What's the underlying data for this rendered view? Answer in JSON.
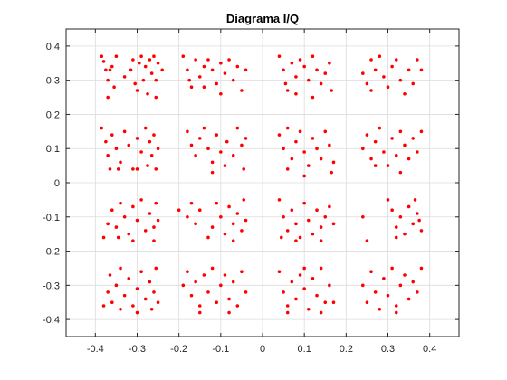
{
  "chart_data": {
    "type": "scatter",
    "title": "Diagrama I/Q",
    "xlabel": "",
    "ylabel": "",
    "xlim": [
      -0.47,
      0.47
    ],
    "ylim": [
      -0.45,
      0.45
    ],
    "xticks": [
      -0.4,
      -0.3,
      -0.2,
      -0.1,
      0,
      0.1,
      0.2,
      0.3,
      0.4
    ],
    "yticks": [
      -0.4,
      -0.3,
      -0.2,
      -0.1,
      0,
      0.1,
      0.2,
      0.3,
      0.4
    ],
    "xtick_labels": [
      "-0.4",
      "-0.3",
      "-0.2",
      "-0.1",
      "0",
      "0.1",
      "0.2",
      "0.3",
      "0.4"
    ],
    "ytick_labels": [
      "-0.4",
      "-0.3",
      "-0.2",
      "-0.1",
      "0",
      "0.1",
      "0.2",
      "0.3",
      "0.4"
    ],
    "grid": true,
    "marker_color": "#ff0000",
    "series": [
      {
        "points": [
          [
            -0.385,
            0.37
          ],
          [
            -0.38,
            0.355
          ],
          [
            -0.375,
            0.33
          ],
          [
            -0.37,
            0.3
          ],
          [
            -0.365,
            0.33
          ],
          [
            -0.36,
            0.34
          ],
          [
            -0.355,
            0.28
          ],
          [
            -0.35,
            0.37
          ],
          [
            -0.33,
            0.31
          ],
          [
            -0.315,
            0.33
          ],
          [
            -0.31,
            0.36
          ],
          [
            -0.305,
            0.29
          ],
          [
            -0.3,
            0.27
          ],
          [
            -0.295,
            0.35
          ],
          [
            -0.29,
            0.37
          ],
          [
            -0.285,
            0.3
          ],
          [
            -0.28,
            0.34
          ],
          [
            -0.275,
            0.26
          ],
          [
            -0.27,
            0.36
          ],
          [
            -0.265,
            0.32
          ],
          [
            -0.26,
            0.37
          ],
          [
            -0.255,
            0.3
          ],
          [
            -0.25,
            0.35
          ],
          [
            -0.24,
            0.33
          ],
          [
            -0.255,
            0.25
          ],
          [
            -0.37,
            0.25
          ],
          [
            -0.19,
            0.37
          ],
          [
            -0.18,
            0.33
          ],
          [
            -0.175,
            0.3
          ],
          [
            -0.17,
            0.28
          ],
          [
            -0.16,
            0.36
          ],
          [
            -0.15,
            0.31
          ],
          [
            -0.14,
            0.34
          ],
          [
            -0.13,
            0.36
          ],
          [
            -0.12,
            0.33
          ],
          [
            -0.11,
            0.29
          ],
          [
            -0.1,
            0.35
          ],
          [
            -0.09,
            0.32
          ],
          [
            -0.08,
            0.36
          ],
          [
            -0.07,
            0.3
          ],
          [
            -0.06,
            0.34
          ],
          [
            -0.05,
            0.27
          ],
          [
            -0.04,
            0.33
          ],
          [
            -0.14,
            0.28
          ],
          [
            -0.1,
            0.26
          ],
          [
            0.04,
            0.37
          ],
          [
            0.05,
            0.33
          ],
          [
            0.055,
            0.29
          ],
          [
            0.06,
            0.27
          ],
          [
            0.07,
            0.35
          ],
          [
            0.08,
            0.31
          ],
          [
            0.09,
            0.36
          ],
          [
            0.1,
            0.34
          ],
          [
            0.11,
            0.3
          ],
          [
            0.12,
            0.37
          ],
          [
            0.13,
            0.33
          ],
          [
            0.14,
            0.29
          ],
          [
            0.15,
            0.32
          ],
          [
            0.16,
            0.35
          ],
          [
            0.165,
            0.27
          ],
          [
            0.08,
            0.26
          ],
          [
            0.12,
            0.25
          ],
          [
            0.24,
            0.32
          ],
          [
            0.25,
            0.29
          ],
          [
            0.26,
            0.36
          ],
          [
            0.27,
            0.33
          ],
          [
            0.28,
            0.37
          ],
          [
            0.29,
            0.31
          ],
          [
            0.3,
            0.28
          ],
          [
            0.31,
            0.34
          ],
          [
            0.32,
            0.36
          ],
          [
            0.33,
            0.3
          ],
          [
            0.34,
            0.26
          ],
          [
            0.35,
            0.33
          ],
          [
            0.36,
            0.29
          ],
          [
            0.37,
            0.36
          ],
          [
            0.38,
            0.33
          ],
          [
            0.26,
            0.27
          ],
          [
            -0.385,
            0.16
          ],
          [
            -0.375,
            0.12
          ],
          [
            -0.37,
            0.08
          ],
          [
            -0.365,
            0.04
          ],
          [
            -0.36,
            0.14
          ],
          [
            -0.35,
            0.1
          ],
          [
            -0.34,
            0.06
          ],
          [
            -0.33,
            0.15
          ],
          [
            -0.32,
            0.11
          ],
          [
            -0.31,
            0.04
          ],
          [
            -0.3,
            0.13
          ],
          [
            -0.29,
            0.09
          ],
          [
            -0.28,
            0.16
          ],
          [
            -0.275,
            0.05
          ],
          [
            -0.27,
            0.12
          ],
          [
            -0.265,
            0.08
          ],
          [
            -0.26,
            0.14
          ],
          [
            -0.255,
            0.04
          ],
          [
            -0.25,
            0.1
          ],
          [
            -0.3,
            0.04
          ],
          [
            -0.345,
            0.04
          ],
          [
            -0.18,
            0.15
          ],
          [
            -0.17,
            0.11
          ],
          [
            -0.16,
            0.08
          ],
          [
            -0.15,
            0.13
          ],
          [
            -0.14,
            0.16
          ],
          [
            -0.13,
            0.1
          ],
          [
            -0.12,
            0.06
          ],
          [
            -0.11,
            0.14
          ],
          [
            -0.1,
            0.09
          ],
          [
            -0.09,
            0.05
          ],
          [
            -0.085,
            0.12
          ],
          [
            -0.07,
            0.08
          ],
          [
            -0.06,
            0.16
          ],
          [
            -0.05,
            0.11
          ],
          [
            -0.045,
            0.04
          ],
          [
            -0.04,
            0.13
          ],
          [
            -0.12,
            0.03
          ],
          [
            0.04,
            0.14
          ],
          [
            0.05,
            0.1
          ],
          [
            0.06,
            0.16
          ],
          [
            0.07,
            0.07
          ],
          [
            0.08,
            0.12
          ],
          [
            0.09,
            0.15
          ],
          [
            0.1,
            0.09
          ],
          [
            0.11,
            0.05
          ],
          [
            0.12,
            0.13
          ],
          [
            0.13,
            0.1
          ],
          [
            0.14,
            0.07
          ],
          [
            0.15,
            0.15
          ],
          [
            0.16,
            0.11
          ],
          [
            0.17,
            0.06
          ],
          [
            0.165,
            0.03
          ],
          [
            0.06,
            0.04
          ],
          [
            0.1,
            0.02
          ],
          [
            0.24,
            0.1
          ],
          [
            0.25,
            0.14
          ],
          [
            0.26,
            0.07
          ],
          [
            0.27,
            0.12
          ],
          [
            0.28,
            0.16
          ],
          [
            0.29,
            0.09
          ],
          [
            0.3,
            0.05
          ],
          [
            0.31,
            0.13
          ],
          [
            0.32,
            0.08
          ],
          [
            0.33,
            0.15
          ],
          [
            0.34,
            0.11
          ],
          [
            0.35,
            0.07
          ],
          [
            0.36,
            0.13
          ],
          [
            0.37,
            0.09
          ],
          [
            0.38,
            0.15
          ],
          [
            0.27,
            0.05
          ],
          [
            0.33,
            0.03
          ],
          [
            -0.38,
            -0.16
          ],
          [
            -0.37,
            -0.12
          ],
          [
            -0.36,
            -0.08
          ],
          [
            -0.35,
            -0.13
          ],
          [
            -0.34,
            -0.06
          ],
          [
            -0.33,
            -0.1
          ],
          [
            -0.32,
            -0.15
          ],
          [
            -0.31,
            -0.07
          ],
          [
            -0.3,
            -0.11
          ],
          [
            -0.29,
            -0.05
          ],
          [
            -0.28,
            -0.14
          ],
          [
            -0.27,
            -0.09
          ],
          [
            -0.26,
            -0.13
          ],
          [
            -0.255,
            -0.06
          ],
          [
            -0.25,
            -0.11
          ],
          [
            -0.31,
            -0.17
          ],
          [
            -0.345,
            -0.16
          ],
          [
            -0.26,
            -0.17
          ],
          [
            -0.2,
            -0.08
          ],
          [
            -0.18,
            -0.1
          ],
          [
            -0.17,
            -0.06
          ],
          [
            -0.16,
            -0.12
          ],
          [
            -0.15,
            -0.08
          ],
          [
            -0.12,
            -0.13
          ],
          [
            -0.11,
            -0.06
          ],
          [
            -0.1,
            -0.1
          ],
          [
            -0.09,
            -0.15
          ],
          [
            -0.08,
            -0.07
          ],
          [
            -0.07,
            -0.12
          ],
          [
            -0.06,
            -0.09
          ],
          [
            -0.05,
            -0.14
          ],
          [
            -0.045,
            -0.05
          ],
          [
            -0.04,
            -0.11
          ],
          [
            -0.13,
            -0.16
          ],
          [
            -0.07,
            -0.17
          ],
          [
            0.04,
            -0.05
          ],
          [
            0.05,
            -0.1
          ],
          [
            0.06,
            -0.14
          ],
          [
            0.07,
            -0.08
          ],
          [
            0.08,
            -0.12
          ],
          [
            0.09,
            -0.16
          ],
          [
            0.1,
            -0.06
          ],
          [
            0.11,
            -0.11
          ],
          [
            0.12,
            -0.15
          ],
          [
            0.13,
            -0.08
          ],
          [
            0.14,
            -0.13
          ],
          [
            0.15,
            -0.1
          ],
          [
            0.16,
            -0.07
          ],
          [
            0.17,
            -0.12
          ],
          [
            0.08,
            -0.17
          ],
          [
            0.14,
            -0.17
          ],
          [
            0.045,
            -0.16
          ],
          [
            0.24,
            -0.1
          ],
          [
            0.25,
            -0.17
          ],
          [
            0.3,
            -0.05
          ],
          [
            0.31,
            -0.08
          ],
          [
            0.32,
            -0.13
          ],
          [
            0.33,
            -0.1
          ],
          [
            0.34,
            -0.15
          ],
          [
            0.35,
            -0.07
          ],
          [
            0.36,
            -0.12
          ],
          [
            0.37,
            -0.09
          ],
          [
            0.38,
            -0.14
          ],
          [
            0.365,
            -0.05
          ],
          [
            0.375,
            -0.11
          ],
          [
            0.32,
            -0.16
          ],
          [
            -0.38,
            -0.36
          ],
          [
            -0.37,
            -0.32
          ],
          [
            -0.365,
            -0.27
          ],
          [
            -0.36,
            -0.35
          ],
          [
            -0.35,
            -0.3
          ],
          [
            -0.34,
            -0.37
          ],
          [
            -0.33,
            -0.33
          ],
          [
            -0.32,
            -0.28
          ],
          [
            -0.31,
            -0.36
          ],
          [
            -0.3,
            -0.31
          ],
          [
            -0.29,
            -0.26
          ],
          [
            -0.28,
            -0.34
          ],
          [
            -0.27,
            -0.29
          ],
          [
            -0.265,
            -0.37
          ],
          [
            -0.26,
            -0.32
          ],
          [
            -0.255,
            -0.25
          ],
          [
            -0.25,
            -0.35
          ],
          [
            -0.34,
            -0.25
          ],
          [
            -0.3,
            -0.38
          ],
          [
            -0.19,
            -0.3
          ],
          [
            -0.18,
            -0.26
          ],
          [
            -0.17,
            -0.33
          ],
          [
            -0.16,
            -0.29
          ],
          [
            -0.15,
            -0.36
          ],
          [
            -0.14,
            -0.27
          ],
          [
            -0.13,
            -0.32
          ],
          [
            -0.12,
            -0.25
          ],
          [
            -0.11,
            -0.35
          ],
          [
            -0.1,
            -0.3
          ],
          [
            -0.09,
            -0.27
          ],
          [
            -0.08,
            -0.34
          ],
          [
            -0.07,
            -0.29
          ],
          [
            -0.06,
            -0.36
          ],
          [
            -0.05,
            -0.26
          ],
          [
            -0.04,
            -0.32
          ],
          [
            -0.15,
            -0.38
          ],
          [
            -0.08,
            -0.38
          ],
          [
            0.04,
            -0.26
          ],
          [
            0.05,
            -0.32
          ],
          [
            0.06,
            -0.36
          ],
          [
            0.07,
            -0.29
          ],
          [
            0.08,
            -0.34
          ],
          [
            0.09,
            -0.27
          ],
          [
            0.1,
            -0.31
          ],
          [
            0.11,
            -0.37
          ],
          [
            0.12,
            -0.28
          ],
          [
            0.13,
            -0.33
          ],
          [
            0.14,
            -0.25
          ],
          [
            0.15,
            -0.35
          ],
          [
            0.16,
            -0.3
          ],
          [
            0.17,
            -0.35
          ],
          [
            0.1,
            -0.25
          ],
          [
            0.14,
            -0.38
          ],
          [
            0.06,
            -0.38
          ],
          [
            0.24,
            -0.3
          ],
          [
            0.25,
            -0.35
          ],
          [
            0.26,
            -0.26
          ],
          [
            0.27,
            -0.32
          ],
          [
            0.28,
            -0.37
          ],
          [
            0.29,
            -0.28
          ],
          [
            0.3,
            -0.33
          ],
          [
            0.31,
            -0.25
          ],
          [
            0.32,
            -0.36
          ],
          [
            0.33,
            -0.3
          ],
          [
            0.34,
            -0.27
          ],
          [
            0.35,
            -0.34
          ],
          [
            0.36,
            -0.29
          ],
          [
            0.37,
            -0.32
          ],
          [
            0.38,
            -0.25
          ],
          [
            0.32,
            -0.38
          ]
        ]
      }
    ]
  }
}
